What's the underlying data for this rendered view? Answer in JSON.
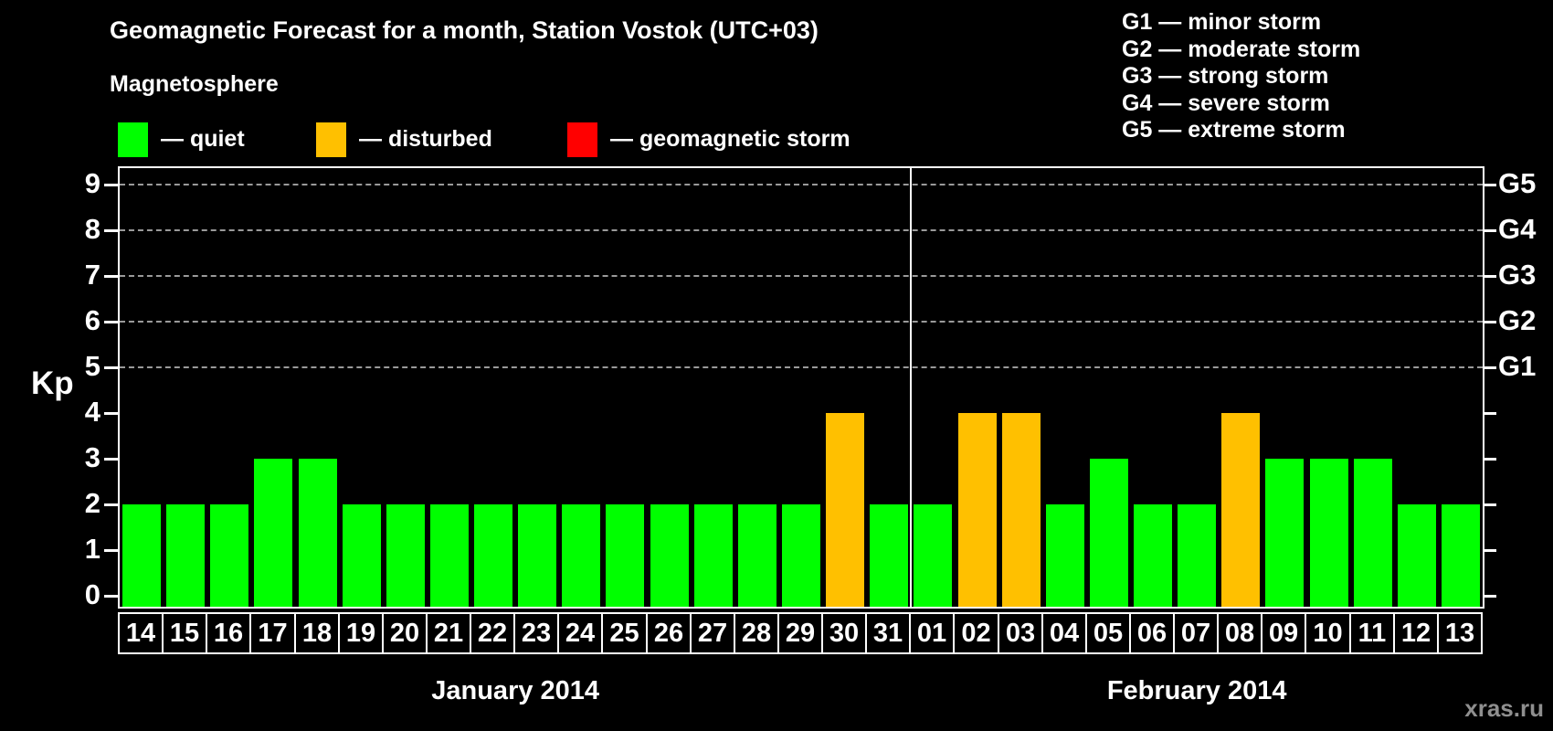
{
  "title": "Geomagnetic Forecast for a month, Station Vostok (UTC+03)",
  "subtitle": "Magnetosphere",
  "legend": [
    {
      "label": "— quiet",
      "color": "#00ff00"
    },
    {
      "label": "— disturbed",
      "color": "#ffc000"
    },
    {
      "label": "— geomagnetic storm",
      "color": "#ff0000"
    }
  ],
  "storm_scale": [
    "G1 — minor storm",
    "G2 — moderate storm",
    "G3 — strong storm",
    "G4 — severe storm",
    "G5 — extreme storm"
  ],
  "watermark": "xras.ru",
  "chart_data": {
    "type": "bar",
    "title": "Geomagnetic Forecast for a month, Station Vostok (UTC+03)",
    "ylabel": "Kp",
    "ylim": [
      0,
      9
    ],
    "yticks": [
      0,
      1,
      2,
      3,
      4,
      5,
      6,
      7,
      8,
      9
    ],
    "grid_kp_levels": [
      5,
      6,
      7,
      8,
      9
    ],
    "right_axis_labels": [
      {
        "kp": 5,
        "label": "G1"
      },
      {
        "kp": 6,
        "label": "G2"
      },
      {
        "kp": 7,
        "label": "G3"
      },
      {
        "kp": 8,
        "label": "G4"
      },
      {
        "kp": 9,
        "label": "G5"
      }
    ],
    "status_colors": {
      "quiet": "#00ff00",
      "disturbed": "#ffc000",
      "storm": "#ff0000"
    },
    "legend_position": "top-left",
    "grid": "dashed horizontal at storm levels only",
    "months": [
      {
        "label": "January 2014",
        "days": [
          "14",
          "15",
          "16",
          "17",
          "18",
          "19",
          "20",
          "21",
          "22",
          "23",
          "24",
          "25",
          "26",
          "27",
          "28",
          "29",
          "30",
          "31"
        ],
        "kp": [
          2,
          2,
          2,
          3,
          3,
          2,
          2,
          2,
          2,
          2,
          2,
          2,
          2,
          2,
          2,
          2,
          4,
          2
        ],
        "status": [
          "quiet",
          "quiet",
          "quiet",
          "quiet",
          "quiet",
          "quiet",
          "quiet",
          "quiet",
          "quiet",
          "quiet",
          "quiet",
          "quiet",
          "quiet",
          "quiet",
          "quiet",
          "quiet",
          "disturbed",
          "quiet"
        ]
      },
      {
        "label": "February 2014",
        "days": [
          "01",
          "02",
          "03",
          "04",
          "05",
          "06",
          "07",
          "08",
          "09",
          "10",
          "11",
          "12",
          "13"
        ],
        "kp": [
          2,
          4,
          4,
          2,
          3,
          2,
          2,
          4,
          3,
          3,
          3,
          2,
          2
        ],
        "status": [
          "quiet",
          "disturbed",
          "disturbed",
          "quiet",
          "quiet",
          "quiet",
          "quiet",
          "disturbed",
          "quiet",
          "quiet",
          "quiet",
          "quiet",
          "quiet"
        ]
      }
    ]
  }
}
